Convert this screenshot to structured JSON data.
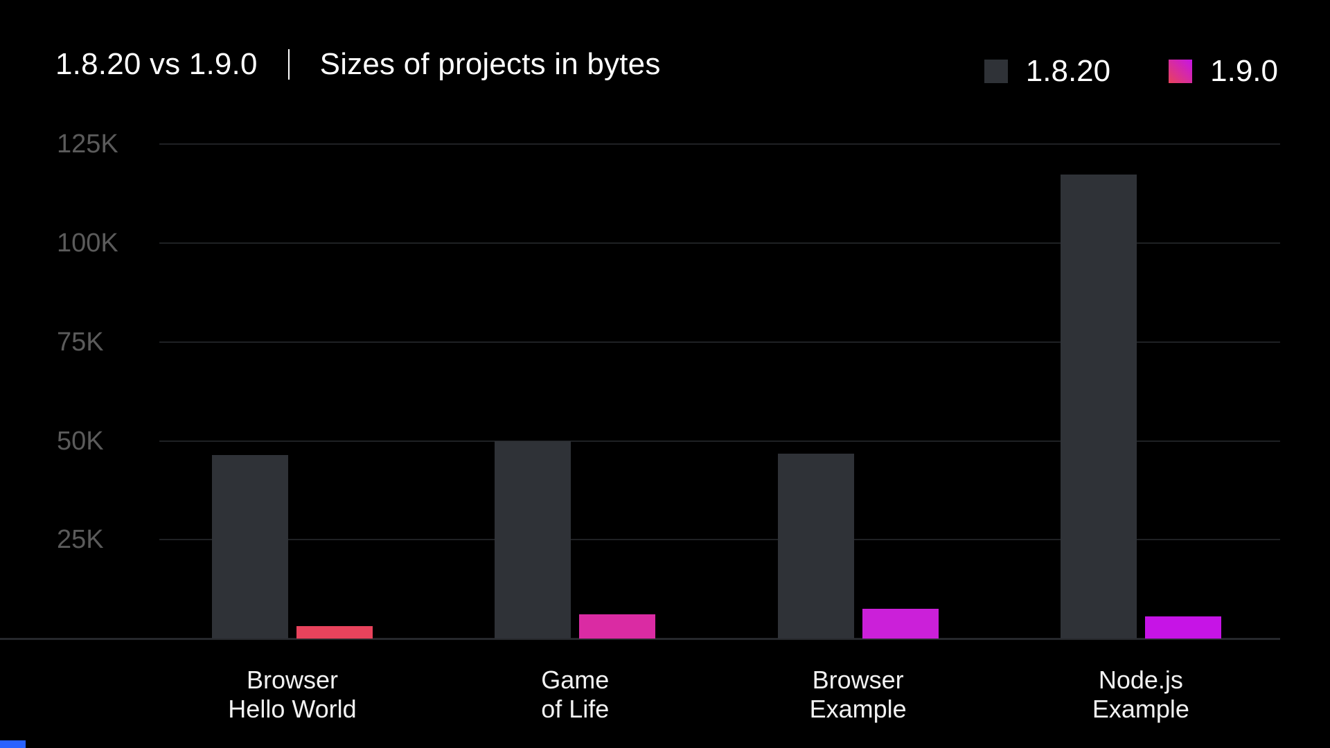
{
  "header": {
    "title_left": "1.8.20 vs 1.9.0",
    "title_right": "Sizes of projects in bytes"
  },
  "legend": {
    "items": [
      {
        "label": "1.8.20",
        "color": "#2f3237"
      },
      {
        "label": "1.9.0",
        "gradient": [
          "#e8435c",
          "#c614e6"
        ]
      }
    ]
  },
  "chart_data": {
    "type": "bar",
    "title": "1.8.20 vs 1.9.0 | Sizes of projects in bytes",
    "categories": [
      [
        "Browser",
        "Hello World"
      ],
      [
        "Game",
        "of Life"
      ],
      [
        "Browser",
        "Example"
      ],
      [
        "Node.js",
        "Example"
      ]
    ],
    "series": [
      {
        "name": "1.8.20",
        "values_k": [
          46.4,
          49.9,
          46.7,
          117.3
        ],
        "colors": [
          "#2f3237",
          "#2f3237",
          "#2f3237",
          "#2f3237"
        ]
      },
      {
        "name": "1.9.0",
        "values_k": [
          3.2,
          6.1,
          7.5,
          5.6
        ],
        "colors": [
          "#e8435c",
          "#da2ba3",
          "#cb20d9",
          "#c614e6"
        ]
      }
    ],
    "unit": "K bytes",
    "yticks_k": [
      25,
      50,
      75,
      100,
      125
    ],
    "ytick_labels": [
      "25K",
      "50K",
      "75K",
      "100K",
      "125K"
    ],
    "ylim_k": [
      0,
      130
    ],
    "grid": "horizontal",
    "legend_position": "top-right",
    "background": "#000000"
  }
}
